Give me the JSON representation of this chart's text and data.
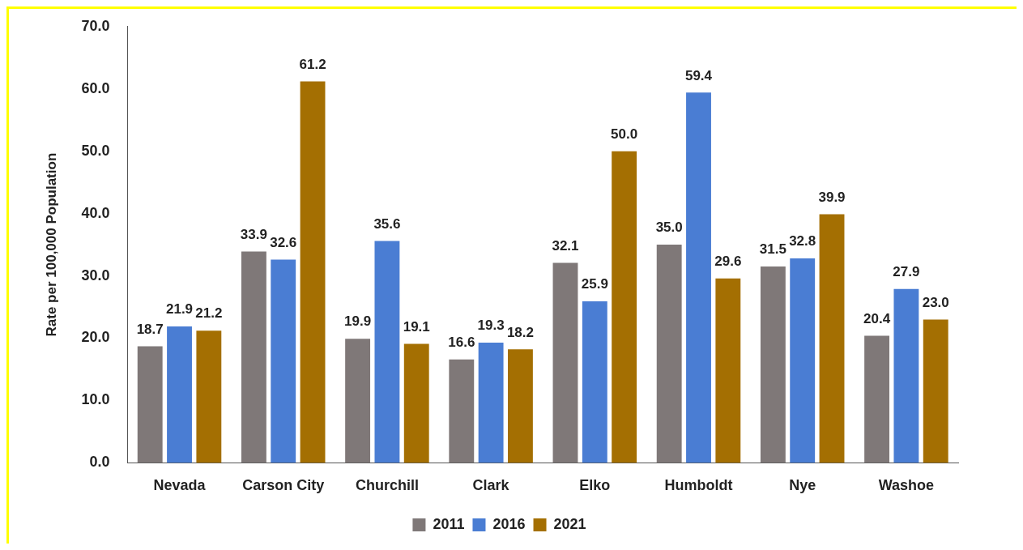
{
  "chart_data": {
    "type": "bar",
    "ylabel": "Rate per 100,000 Population",
    "categories": [
      "Nevada",
      "Carson City",
      "Churchill",
      "Clark",
      "Elko",
      "Humboldt",
      "Nye",
      "Washoe"
    ],
    "series": [
      {
        "name": "2011",
        "color": "#7f7878",
        "values": [
          18.7,
          33.9,
          19.9,
          16.6,
          32.1,
          35.0,
          31.5,
          20.4
        ],
        "value_labels": [
          "18.7",
          "33.9",
          "19.9",
          "16.6",
          "32.1",
          "35.0",
          "31.5",
          "20.4"
        ]
      },
      {
        "name": "2016",
        "color": "#4a7dd3",
        "values": [
          21.9,
          32.6,
          35.6,
          19.3,
          25.9,
          59.4,
          32.8,
          27.9
        ],
        "value_labels": [
          "21.9",
          "32.6",
          "35.6",
          "19.3",
          "25.9",
          "59.4",
          "32.8",
          "27.9"
        ]
      },
      {
        "name": "2021",
        "color": "#a46f02",
        "values": [
          21.2,
          61.2,
          19.1,
          18.2,
          50.0,
          29.6,
          39.9,
          23.0
        ],
        "value_labels": [
          "21.2",
          "61.2",
          "19.1",
          "18.2",
          "50.0",
          "29.6",
          "39.9",
          "23.0"
        ]
      }
    ],
    "ylim": [
      0,
      70
    ],
    "yticks": [
      {
        "value": 0,
        "label": "0.0"
      },
      {
        "value": 10,
        "label": "10.0"
      },
      {
        "value": 20,
        "label": "20.0"
      },
      {
        "value": 30,
        "label": "30.0"
      },
      {
        "value": 40,
        "label": "40.0"
      },
      {
        "value": 50,
        "label": "50.0"
      },
      {
        "value": 60,
        "label": "60.0"
      },
      {
        "value": 70,
        "label": "70.0"
      }
    ],
    "grid": false,
    "legend": "bottom"
  }
}
